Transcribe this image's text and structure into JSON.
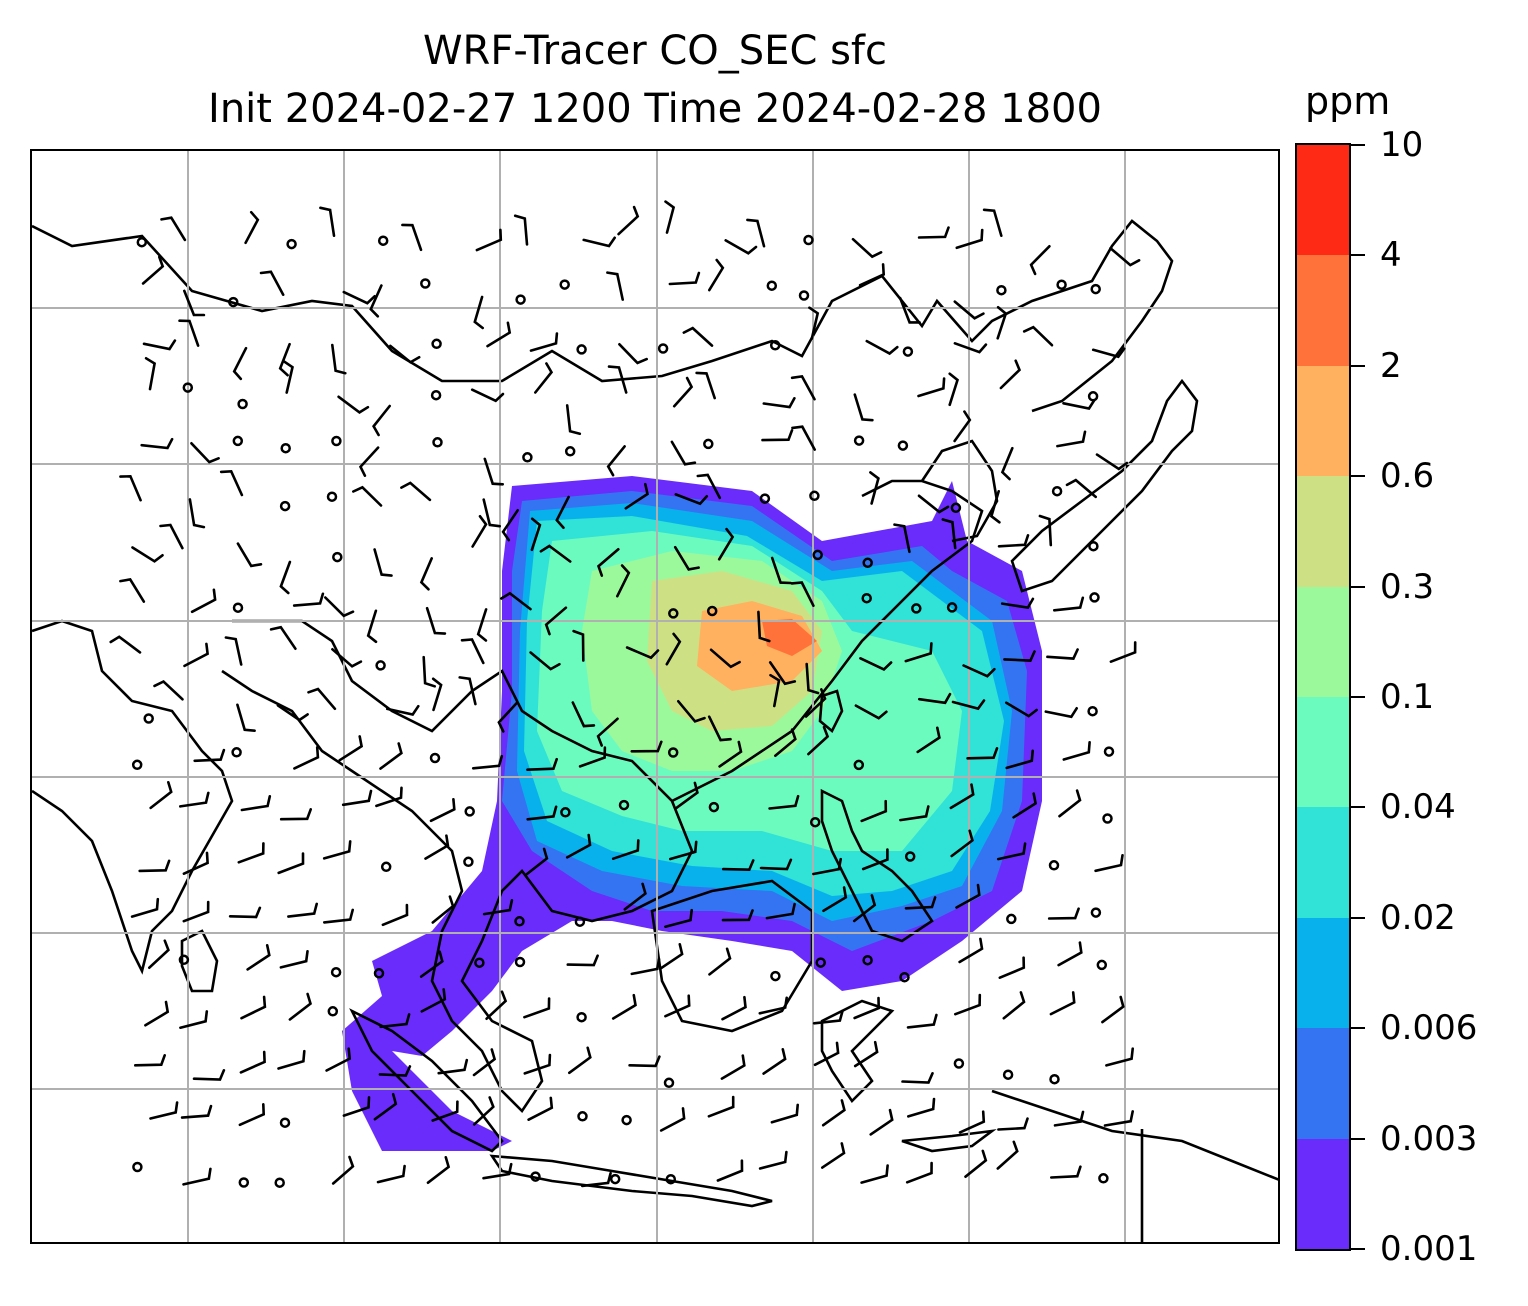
{
  "title": {
    "line1": "WRF-Tracer CO_SEC sfc",
    "line2": "Init 2024-02-27 1200 Time 2024-02-28 1800"
  },
  "colorbar": {
    "unit": "ppm",
    "levels": [
      "0.001",
      "0.003",
      "0.006",
      "0.02",
      "0.04",
      "0.1",
      "0.3",
      "0.6",
      "2",
      "4",
      "10"
    ],
    "colors": [
      "#6a2cfb",
      "#3474f3",
      "#09b1ec",
      "#30e3d6",
      "#6cfbbf",
      "#9bf99b",
      "#cde184",
      "#ffb15f",
      "#ff7239",
      "#ff2a15"
    ]
  },
  "map": {
    "background": "#ffffff",
    "coastline_color": "#000000",
    "gridline_color": "#b0b0b0",
    "wind_barb_color": "#000000"
  }
}
